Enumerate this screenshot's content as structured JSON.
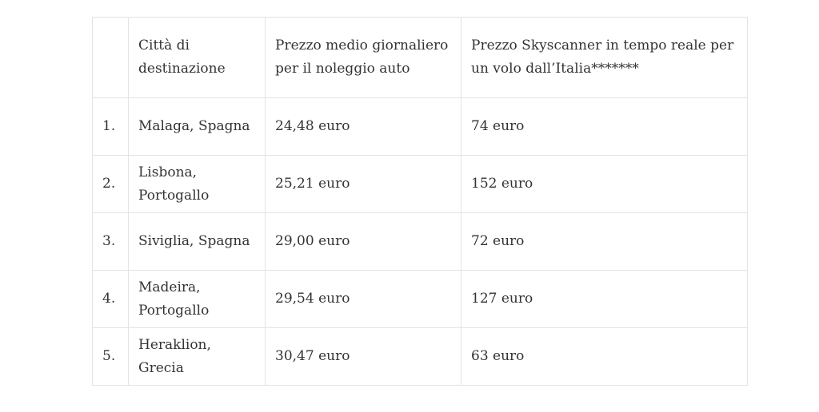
{
  "table": {
    "headers": {
      "number": "",
      "city": "Città di destinazione",
      "rent": "Prezzo medio giornaliero per il noleggio auto",
      "flight": "Prezzo Skyscanner in tempo reale per un volo dall’Italia*******"
    },
    "rows": [
      {
        "number": "1.",
        "city": "Malaga, Spagna",
        "rent": "24,48 euro",
        "flight": "74 euro"
      },
      {
        "number": "2.",
        "city": "Lisbona, Portogallo",
        "rent": "25,21 euro",
        "flight": "152 euro"
      },
      {
        "number": "3.",
        "city": "Siviglia, Spagna",
        "rent": "29,00 euro",
        "flight": "72 euro"
      },
      {
        "number": "4.",
        "city": "Madeira, Portogallo",
        "rent": "29,54 euro",
        "flight": "127 euro"
      },
      {
        "number": "5.",
        "city": "Heraklion, Grecia",
        "rent": "30,47 euro",
        "flight": "63 euro"
      }
    ]
  }
}
